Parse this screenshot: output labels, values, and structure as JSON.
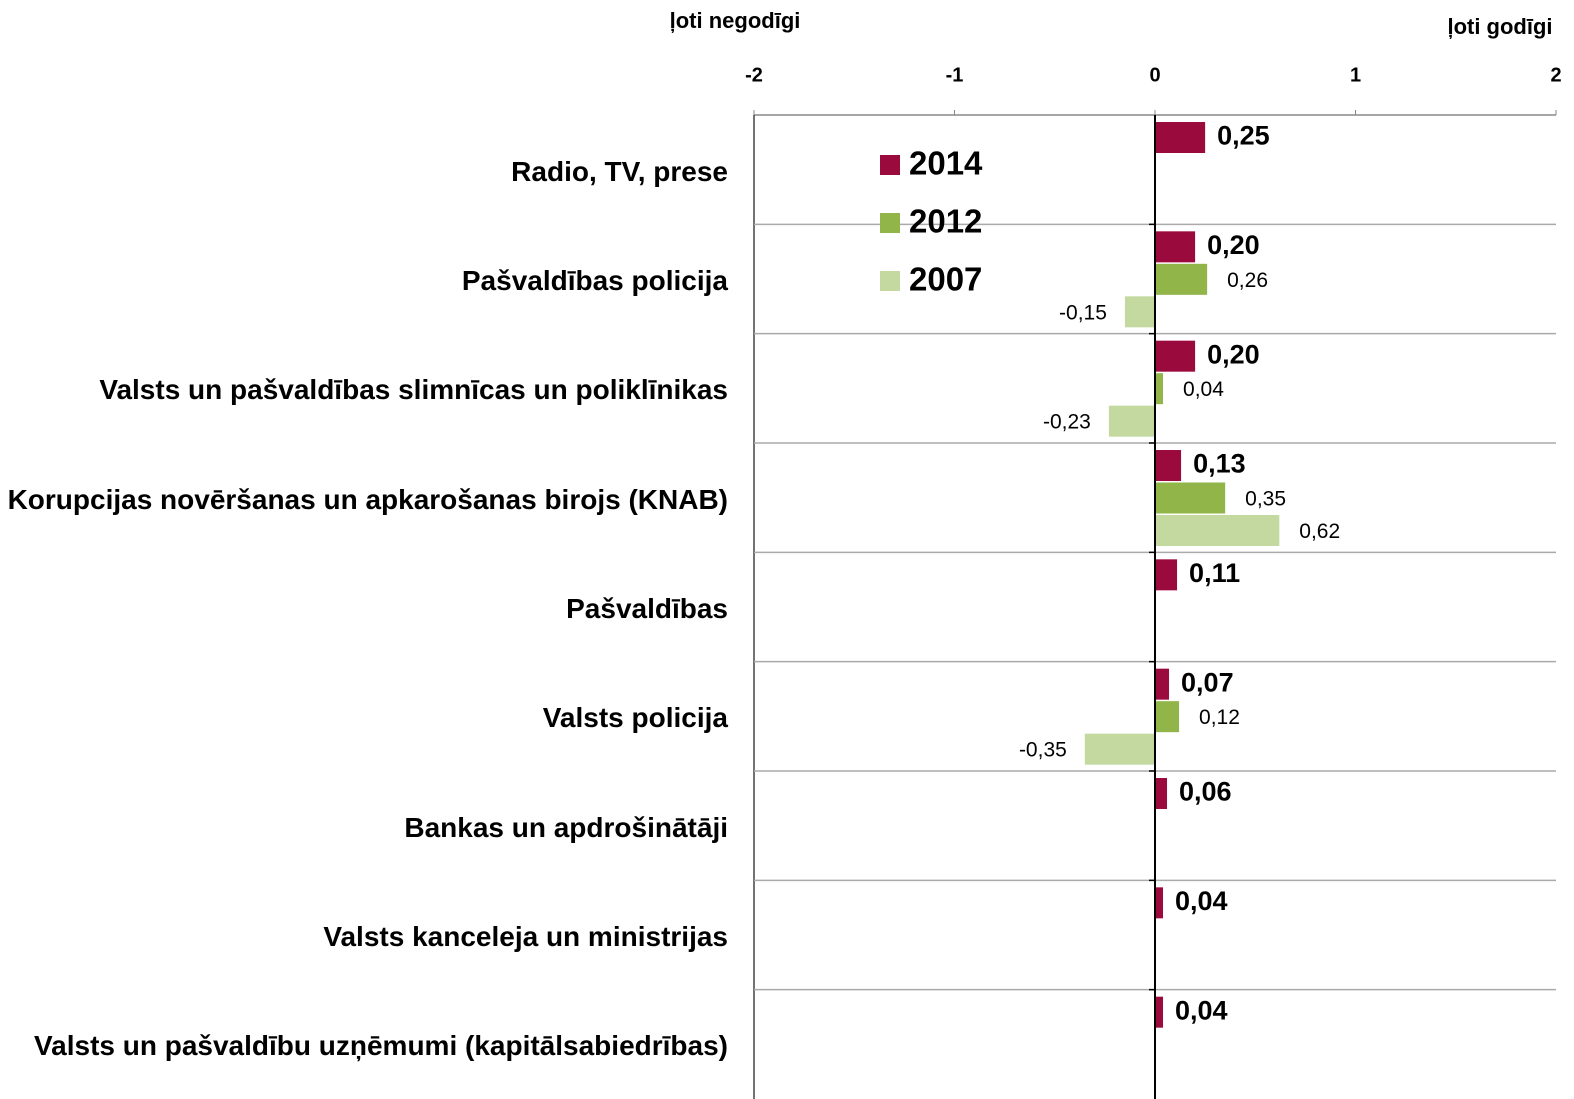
{
  "chart_data": {
    "type": "hbar",
    "left_label": "ļoti negodīgi",
    "right_label": "ļoti godīgi",
    "categories": [
      "Radio, TV, prese",
      "Pašvaldības policija",
      "Valsts un pašvaldības slimnīcas un poliklīnikas",
      "Korupcijas novēršanas un apkarošanas birojs (KNAB)",
      "Pašvaldības",
      "Valsts policija",
      "Bankas un apdrošinātāji",
      "Valsts kanceleja un ministrijas",
      "Valsts un pašvaldību uzņēmumi (kapitālsabiedrības)"
    ],
    "series": [
      {
        "name": "2014",
        "color": "#9b0a3c",
        "values": [
          0.25,
          0.2,
          0.2,
          0.13,
          0.11,
          0.07,
          0.06,
          0.04,
          0.04
        ],
        "value_labels": [
          "0,25",
          "0,20",
          "0,20",
          "0,13",
          "0,11",
          "0,07",
          "0,06",
          "0,04",
          "0,04"
        ]
      },
      {
        "name": "2012",
        "color": "#92b54a",
        "values": [
          null,
          0.26,
          0.04,
          0.35,
          null,
          0.12,
          null,
          null,
          null
        ],
        "value_labels": [
          null,
          "0,26",
          "0,04",
          "0,35",
          null,
          "0,12",
          null,
          null,
          null
        ]
      },
      {
        "name": "2007",
        "color": "#c4d9a0",
        "values": [
          null,
          -0.15,
          -0.23,
          0.62,
          null,
          -0.35,
          null,
          null,
          null
        ],
        "value_labels": [
          null,
          "-0,15",
          "-0,23",
          "0,62",
          null,
          "-0,35",
          null,
          null,
          null
        ]
      }
    ],
    "xlim": [
      -2,
      2
    ],
    "xticks": [
      -2,
      -1,
      0,
      1,
      2
    ]
  }
}
